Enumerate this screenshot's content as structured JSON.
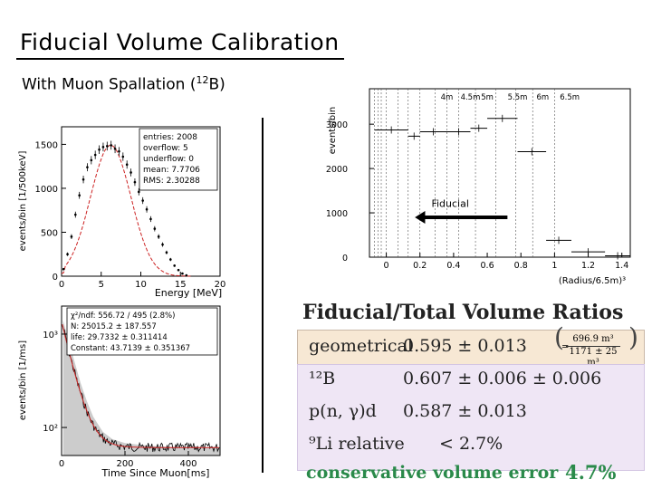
{
  "slide": {
    "title": "Fiducial Volume Calibration",
    "subtitle_prefix": "With Muon Spallation (",
    "subtitle_sup": "12",
    "subtitle_suffix": "B)"
  },
  "energy_plot": {
    "ylabel": "events/bin [1/500keV]",
    "xlabel": "Energy [MeV]",
    "xticks": [
      "0",
      "5",
      "10",
      "15",
      "20"
    ],
    "yticks": [
      "0",
      "500",
      "1000",
      "1500"
    ],
    "stats": [
      "entries: 2008",
      "overflow: 5",
      "underflow: 0",
      "mean: 7.7706",
      "RMS: 2.30288"
    ]
  },
  "time_plot": {
    "ylabel": "events/bin [1/ms]",
    "xlabel": "Time Since Muon[ms]",
    "xticks": [
      "0",
      "200",
      "400"
    ],
    "yticks": [
      "10³",
      "10²"
    ],
    "fit": [
      "χ²/ndf: 556.72 / 495 (2.8%)",
      "N: 25015.2 ± 187.557",
      "life: 29.7332 ± 0.311414",
      "Constant: 43.7139 ± 0.351367"
    ]
  },
  "radius_plot": {
    "ylabel": "events/bin",
    "xlabel": "(Radius/6.5m)³",
    "xticks": [
      "0",
      "0.2",
      "0.4",
      "0.6",
      "0.8",
      "1",
      "1.2",
      "1.4"
    ],
    "yticks": [
      "0",
      "1000",
      "2000",
      "3000"
    ],
    "radius_labels": [
      "4m",
      "4.5m",
      "5m",
      "5.5m",
      "6m",
      "6.5m"
    ],
    "fiducial_label": "Fiducial"
  },
  "chart_data": [
    {
      "type": "bar",
      "title": "",
      "xlabel": "Energy [MeV]",
      "ylabel": "events/bin [1/500keV]",
      "xlim": [
        0,
        20
      ],
      "ylim": [
        0,
        1700
      ],
      "x": [
        0.25,
        0.75,
        1.25,
        1.75,
        2.25,
        2.75,
        3.25,
        3.75,
        4.25,
        4.75,
        5.25,
        5.75,
        6.25,
        6.75,
        7.25,
        7.75,
        8.25,
        8.75,
        9.25,
        9.75,
        10.25,
        10.75,
        11.25,
        11.75,
        12.25,
        12.75,
        13.25,
        13.75,
        14.25,
        14.75,
        15.25,
        15.75
      ],
      "values": [
        80,
        250,
        450,
        700,
        920,
        1100,
        1240,
        1320,
        1380,
        1440,
        1470,
        1480,
        1490,
        1450,
        1420,
        1360,
        1270,
        1180,
        1070,
        960,
        860,
        760,
        650,
        540,
        450,
        360,
        270,
        190,
        120,
        70,
        30,
        10
      ]
    },
    {
      "type": "line",
      "title": "",
      "xlabel": "Time Since Muon[ms]",
      "ylabel": "events/bin [1/ms]",
      "xlim": [
        0,
        500
      ],
      "ylog_range": [
        1.7,
        3.3
      ],
      "x": [
        5,
        20,
        40,
        60,
        80,
        100,
        130,
        160,
        200,
        250,
        300,
        350,
        400,
        450,
        500
      ],
      "values": [
        1400,
        900,
        520,
        300,
        190,
        130,
        90,
        75,
        68,
        65,
        63,
        62,
        62,
        61,
        60
      ]
    },
    {
      "type": "scatter",
      "title": "",
      "xlabel": "(Radius/6.5m)³",
      "ylabel": "events/bin",
      "xlim": [
        -0.1,
        1.45
      ],
      "ylim": [
        0,
        3800
      ],
      "x": [
        0.03,
        0.15,
        0.29,
        0.43,
        0.56,
        0.74,
        0.91,
        1.09,
        1.27,
        1.45
      ],
      "values": [
        2870,
        2730,
        2830,
        2830,
        2910,
        3130,
        2380,
        380,
        120,
        30
      ]
    }
  ],
  "ratios": {
    "title": "Fiducial/Total Volume Ratios",
    "rows": [
      {
        "label": "geometrical",
        "value": "0.595 ± 0.013",
        "note_num": "696.9 m³",
        "note_den": "1171 ± 25 m³"
      },
      {
        "label": "¹²B",
        "value": "0.607 ± 0.006 ± 0.006"
      },
      {
        "label": "p(n, γ)d",
        "value": "0.587 ± 0.013"
      },
      {
        "label": "⁹Li  relative",
        "value": "< 2.7%"
      }
    ],
    "conservative_label": "conservative volume error",
    "conservative_value": "4.7%",
    "accent_green": "#2a8a4a"
  }
}
